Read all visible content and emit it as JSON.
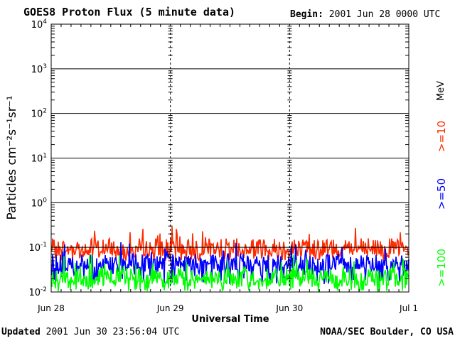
{
  "header": {
    "title": "GOES8 Proton Flux (5 minute data)",
    "begin_label": "Begin:",
    "begin_value": "2001 Jun 28 0000 UTC"
  },
  "footer": {
    "updated_label": "Updated",
    "updated_value": "2001 Jun 30 23:56:04 UTC",
    "credit": "NOAA/SEC Boulder, CO USA"
  },
  "chart_data": {
    "type": "line",
    "title": "GOES8 Proton Flux (5 minute data)",
    "xlabel": "Universal Time",
    "ylabel": "Particles cm⁻²s⁻¹sr⁻¹",
    "x_ticks": [
      "Jun 28",
      "Jun 29",
      "Jun 30",
      "Jul 1"
    ],
    "xlim": [
      "2001-06-28 00:00",
      "2001-07-01 00:00"
    ],
    "y_scale": "log",
    "ylim": [
      0.01,
      10000
    ],
    "y_ticks": [
      {
        "base": "10",
        "exp": "-2"
      },
      {
        "base": "10",
        "exp": "-1"
      },
      {
        "base": "10",
        "exp": "0"
      },
      {
        "base": "10",
        "exp": "1"
      },
      {
        "base": "10",
        "exp": "2"
      },
      {
        "base": "10",
        "exp": "3"
      },
      {
        "base": "10",
        "exp": "4"
      }
    ],
    "legend_unit": "MeV",
    "grid": true,
    "series": [
      {
        "name": ">=10",
        "color": "#ff2a00",
        "median": 0.1,
        "peak": 0.3,
        "low": 0.05
      },
      {
        "name": ">=50",
        "color": "#0000ff",
        "median": 0.045,
        "peak": 0.13,
        "low": 0.015
      },
      {
        "name": ">=100",
        "color": "#00ff00",
        "median": 0.022,
        "peak": 0.07,
        "low": 0.01
      }
    ]
  }
}
